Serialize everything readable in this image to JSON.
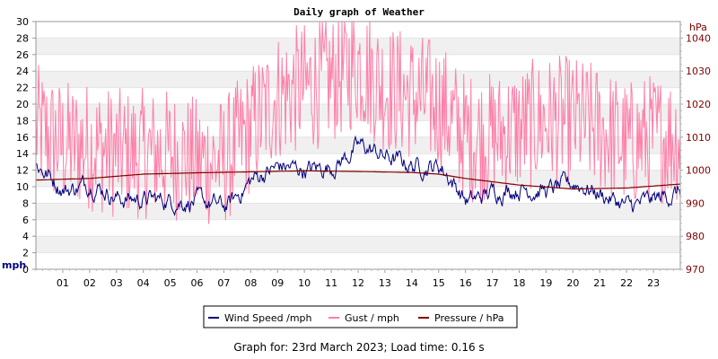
{
  "chart_data": {
    "type": "line",
    "title": "Daily graph of Weather",
    "y_left_label": "mph",
    "y_right_label": "hPa",
    "y_left_range": [
      0,
      30
    ],
    "y_right_range": [
      970,
      1045
    ],
    "y_left_ticks": [
      0,
      2,
      4,
      6,
      8,
      10,
      12,
      14,
      16,
      18,
      20,
      22,
      24,
      26,
      28,
      30
    ],
    "y_right_ticks": [
      970,
      980,
      990,
      1000,
      1010,
      1020,
      1030,
      1040
    ],
    "x_ticks": [
      "01",
      "02",
      "03",
      "04",
      "05",
      "06",
      "07",
      "08",
      "09",
      "10",
      "11",
      "12",
      "13",
      "14",
      "15",
      "16",
      "17",
      "18",
      "19",
      "20",
      "21",
      "22",
      "23"
    ],
    "x_range_hours": [
      0,
      24
    ],
    "grid": true,
    "legend_position": "bottom",
    "colors": {
      "wind": "#000080",
      "gust": "#ff7fa8",
      "pressure": "#800000",
      "right_axis": "#800000"
    },
    "series": [
      {
        "name": "Wind Speed /mph",
        "hours": [
          0,
          1,
          2,
          3,
          4,
          5,
          6,
          7,
          8,
          9,
          10,
          11,
          12,
          13,
          14,
          15,
          16,
          17,
          18,
          19,
          20,
          21,
          22,
          23,
          24
        ],
        "values": [
          12.5,
          9.5,
          10.5,
          8.5,
          8.5,
          8.3,
          8.2,
          7.5,
          11.0,
          12.5,
          12.0,
          12.5,
          15.0,
          13.5,
          12.5,
          12.5,
          8.0,
          9.5,
          9.8,
          9.5,
          10.5,
          9.0,
          7.5,
          8.5,
          9.5
        ]
      },
      {
        "name": "Gust / mph",
        "hours": [
          0,
          1,
          2,
          3,
          4,
          5,
          6,
          7,
          8,
          9,
          10,
          11,
          12,
          13,
          14,
          15,
          16,
          17,
          18,
          19,
          20,
          21,
          22,
          23,
          24
        ],
        "values": [
          17,
          15,
          15,
          14,
          14,
          14,
          13,
          13,
          17,
          21,
          22,
          23,
          25,
          22,
          21,
          20,
          16,
          16,
          17,
          18,
          18,
          17,
          15,
          16,
          16
        ]
      },
      {
        "name": "Pressure / hPa",
        "hours": [
          0,
          2,
          4,
          6,
          8,
          10,
          12,
          14,
          15,
          16,
          18,
          20,
          22,
          24
        ],
        "values": [
          997.0,
          997.5,
          998.8,
          999.2,
          999.5,
          999.8,
          999.6,
          999.3,
          998.8,
          997.5,
          995.5,
          994.3,
          994.6,
          995.8
        ]
      }
    ]
  },
  "footer": {
    "text": "Graph for: 23rd March 2023; Load time: 0.16 s"
  }
}
